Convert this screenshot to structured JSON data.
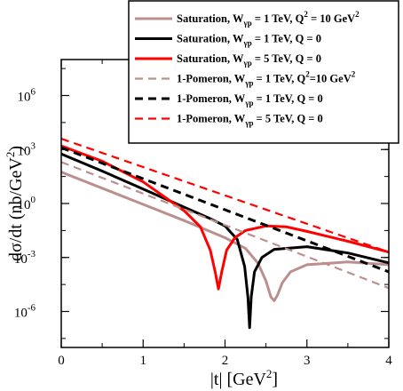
{
  "chart_data": {
    "type": "line",
    "xlabel": {
      "main": "|t| [GeV",
      "sup": "2",
      "end": "]"
    },
    "ylabel": {
      "main": "dσ/dt (nb/GeV",
      "sup": "2",
      "end": ")"
    },
    "xlim": [
      0,
      4
    ],
    "ylim_log10": [
      -8,
      8
    ],
    "y_scale": "log",
    "legend_position": "top-right",
    "x_ticks": [
      {
        "value": 0,
        "label": "0"
      },
      {
        "value": 1,
        "label": "1"
      },
      {
        "value": 2,
        "label": "2"
      },
      {
        "value": 3,
        "label": "3"
      },
      {
        "value": 4,
        "label": "4"
      }
    ],
    "y_ticks": [
      {
        "exp": 6,
        "base": "10",
        "sup": "6"
      },
      {
        "exp": 3,
        "base": "10",
        "sup": "3"
      },
      {
        "exp": 0,
        "base": "10",
        "sup": "0"
      },
      {
        "exp": -3,
        "base": "10",
        "sup": "-3"
      },
      {
        "exp": -6,
        "base": "10",
        "sup": "-6"
      }
    ],
    "series": [
      {
        "name": "Saturation, Wγp = 1 TeV, Q² = 10 GeV²",
        "label_parts": [
          "Saturation, W",
          "γp",
          " = 1 TeV, Q",
          "2",
          " = 10 GeV",
          "2"
        ],
        "color": "#bc8f8f",
        "dash": "solid",
        "width": 3,
        "points": [
          [
            0,
            1.75
          ],
          [
            0.5,
            0.85
          ],
          [
            1,
            -0.05
          ],
          [
            1.5,
            -0.95
          ],
          [
            2,
            -1.9
          ],
          [
            2.25,
            -2.5
          ],
          [
            2.4,
            -3.3
          ],
          [
            2.5,
            -4.3
          ],
          [
            2.56,
            -5.2
          ],
          [
            2.6,
            -5.4
          ],
          [
            2.64,
            -5.1
          ],
          [
            2.7,
            -4.4
          ],
          [
            2.8,
            -3.8
          ],
          [
            3,
            -3.4
          ],
          [
            3.5,
            -3.25
          ],
          [
            4,
            -3.4
          ]
        ]
      },
      {
        "name": "Saturation, Wγp = 1 TeV, Q = 0",
        "label_parts": [
          "Saturation, W",
          "γp",
          " = 1 TeV, Q = 0"
        ],
        "color": "#000000",
        "dash": "solid",
        "width": 3,
        "points": [
          [
            0,
            2.75
          ],
          [
            0.5,
            1.8
          ],
          [
            1,
            0.8
          ],
          [
            1.5,
            -0.2
          ],
          [
            1.8,
            -0.8
          ],
          [
            2,
            -1.25
          ],
          [
            2.15,
            -2.0
          ],
          [
            2.24,
            -3.5
          ],
          [
            2.28,
            -5.2
          ],
          [
            2.3,
            -6.9
          ],
          [
            2.32,
            -5.2
          ],
          [
            2.36,
            -3.8
          ],
          [
            2.45,
            -3.0
          ],
          [
            2.6,
            -2.55
          ],
          [
            3,
            -2.4
          ],
          [
            3.5,
            -2.75
          ],
          [
            4,
            -3.3
          ]
        ]
      },
      {
        "name": "Saturation, Wγp = 5 TeV, Q = 0",
        "label_parts": [
          "Saturation, W",
          "γp",
          " = 5 TeV, Q = 0"
        ],
        "color": "#ff0000",
        "dash": "solid",
        "width": 3,
        "points": [
          [
            0,
            3.2
          ],
          [
            0.5,
            2.35
          ],
          [
            1,
            1.2
          ],
          [
            1.5,
            -0.4
          ],
          [
            1.7,
            -1.3
          ],
          [
            1.82,
            -2.6
          ],
          [
            1.88,
            -3.8
          ],
          [
            1.92,
            -4.75
          ],
          [
            1.96,
            -3.8
          ],
          [
            2.02,
            -2.6
          ],
          [
            2.12,
            -1.9
          ],
          [
            2.25,
            -1.5
          ],
          [
            2.5,
            -1.25
          ],
          [
            2.75,
            -1.3
          ],
          [
            3,
            -1.55
          ],
          [
            3.5,
            -2.1
          ],
          [
            4,
            -2.7
          ]
        ]
      },
      {
        "name": "1-Pomeron, Wγp = 1 TeV, Q²=10 GeV²",
        "label_parts": [
          "1-Pomeron, W",
          "γp",
          " = 1 TeV, Q",
          "2",
          "=10 GeV",
          "2"
        ],
        "color": "#bc8f8f",
        "dash": "dashed",
        "width": 2.2,
        "points": [
          [
            0,
            2.3
          ],
          [
            4,
            -4.7
          ]
        ]
      },
      {
        "name": "1-Pomeron, Wγp = 1 TeV, Q = 0",
        "label_parts": [
          "1-Pomeron, W",
          "γp",
          " = 1 TeV, Q = 0"
        ],
        "color": "#000000",
        "dash": "dashed",
        "width": 3,
        "points": [
          [
            0,
            3.1
          ],
          [
            4,
            -3.8
          ]
        ]
      },
      {
        "name": "1-Pomeron, Wγp = 5 TeV, Q = 0",
        "label_parts": [
          "1-Pomeron, W",
          "γp",
          " = 5 TeV, Q = 0"
        ],
        "color": "#ff0000",
        "dash": "dashed",
        "width": 2.2,
        "points": [
          [
            0,
            3.6
          ],
          [
            4,
            -2.7
          ]
        ]
      }
    ]
  }
}
